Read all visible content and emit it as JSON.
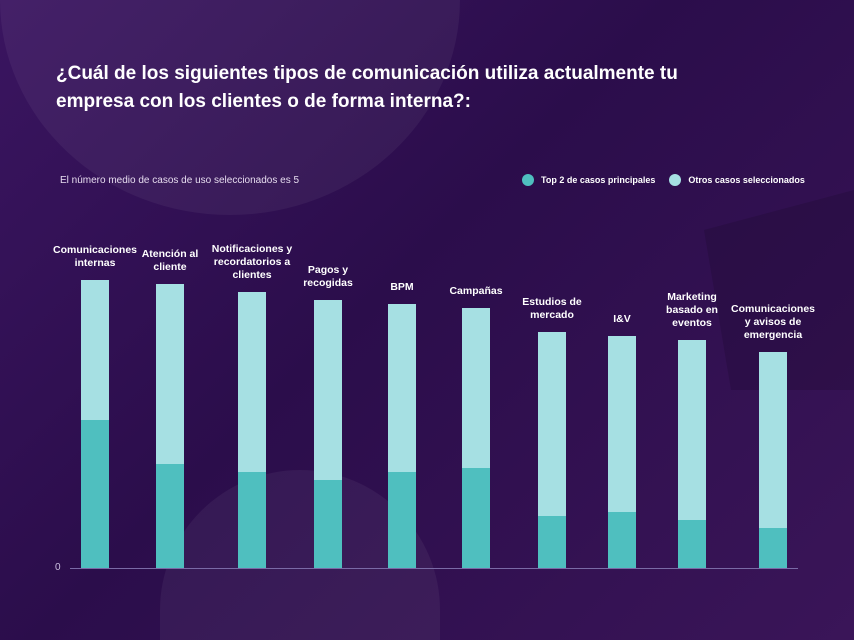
{
  "chart_data": {
    "type": "bar",
    "stacked": true,
    "title": "¿Cuál de los siguientes tipos de comunicación utiliza actualmente tu empresa con los clientes o de forma interna?:",
    "subtitle": "El número medio de casos de uso seleccionados es 5",
    "categories": [
      [
        "Comunicaciones",
        "internas"
      ],
      [
        "Atención al",
        "cliente"
      ],
      [
        "Notificaciones y",
        "recordatorios a",
        "clientes"
      ],
      [
        "Pagos y",
        "recogidas"
      ],
      [
        "BPM"
      ],
      [
        "Campañas"
      ],
      [
        "Estudios de",
        "mercado"
      ],
      [
        "I&V"
      ],
      [
        "Marketing",
        "basado en",
        "eventos"
      ],
      [
        "Comunicaciones",
        "y avisos de",
        "emergencia"
      ]
    ],
    "series": [
      {
        "name": "Top 2 de casos principales",
        "color": "#4fbfbf",
        "values": [
          37,
          26,
          24,
          22,
          24,
          25,
          13,
          14,
          12,
          10
        ]
      },
      {
        "name": "Otros casos seleccionados",
        "color": "#a6e0e3",
        "values": [
          35,
          45,
          45,
          45,
          42,
          40,
          46,
          44,
          45,
          44
        ]
      }
    ],
    "ytick_labels": [
      "0"
    ],
    "ylim": [
      0,
      75
    ],
    "grid": false,
    "legend_position": "top-right"
  }
}
